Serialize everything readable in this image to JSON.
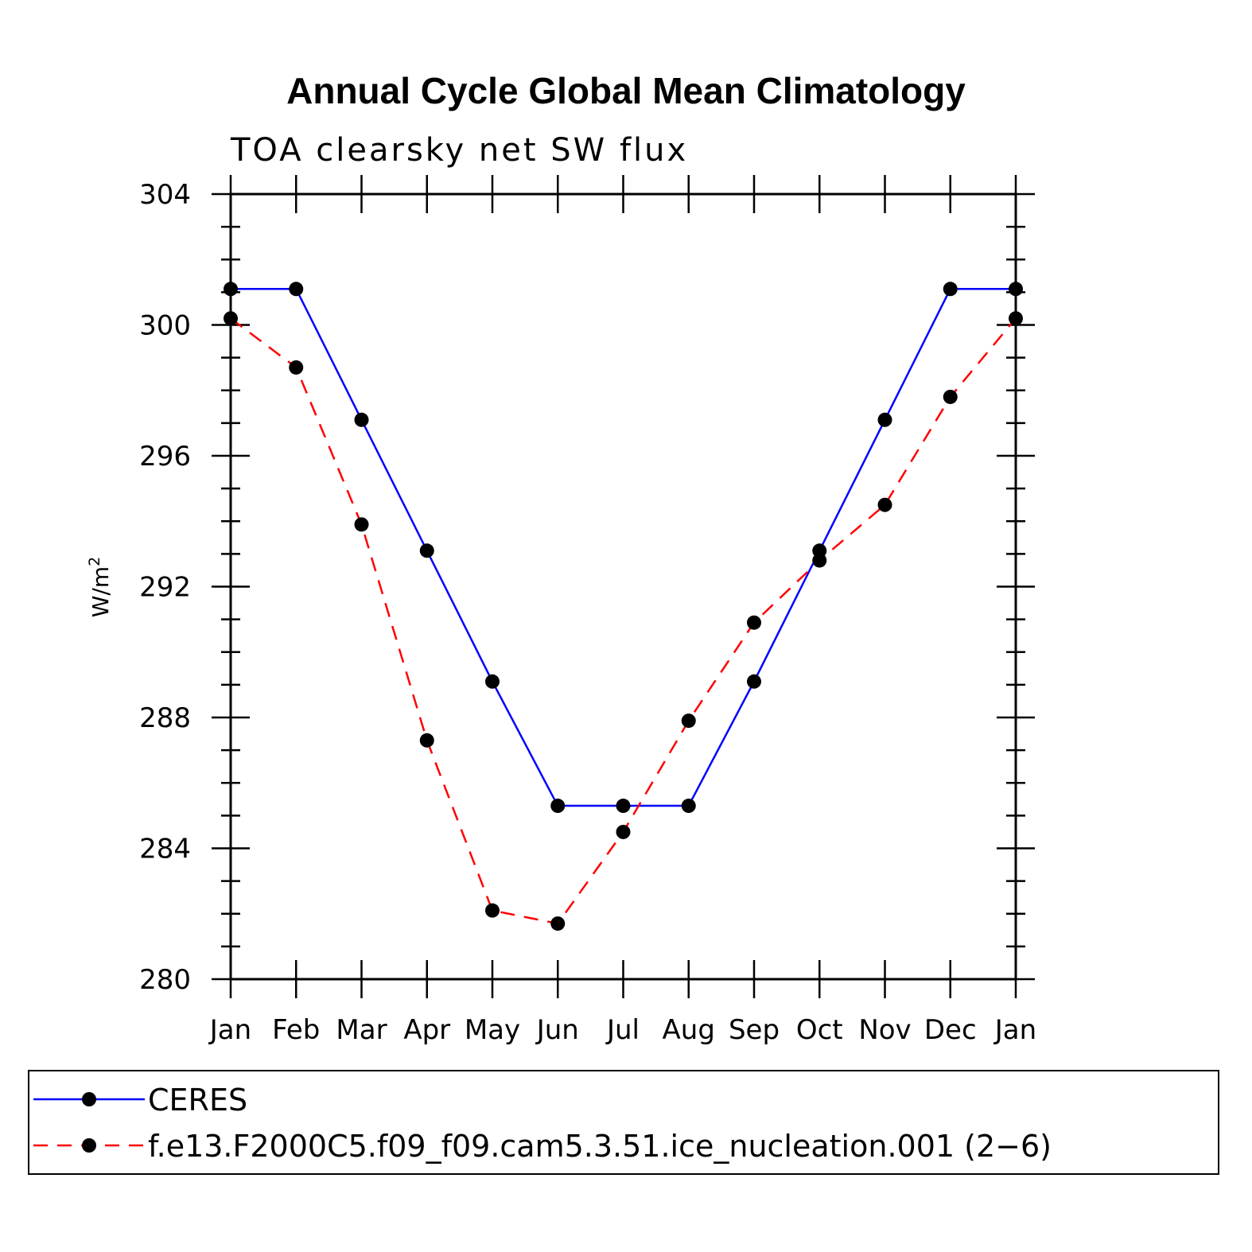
{
  "chart_data": {
    "type": "line",
    "title": "Annual Cycle Global Mean Climatology",
    "subtitle": "TOA clearsky net SW flux",
    "xlabel": "",
    "ylabel": "W/m",
    "ylabel_superscript": "2",
    "categories": [
      "Jan",
      "Feb",
      "Mar",
      "Apr",
      "May",
      "Jun",
      "Jul",
      "Aug",
      "Sep",
      "Oct",
      "Nov",
      "Dec",
      "Jan"
    ],
    "ylim": [
      280,
      304
    ],
    "yticks": [
      "280",
      "284",
      "288",
      "292",
      "296",
      "300",
      "304"
    ],
    "series": [
      {
        "name": "CERES",
        "color": "#0000ff",
        "style": "solid",
        "values": [
          301.1,
          301.1,
          297.1,
          293.1,
          289.1,
          285.3,
          285.3,
          285.3,
          289.1,
          293.1,
          297.1,
          301.1,
          301.1
        ]
      },
      {
        "name": "f.e13.F2000C5.f09_f09.cam5.3.51.ice_nucleation.001 (2−6)",
        "color": "#ff0000",
        "style": "dashed",
        "values": [
          300.2,
          298.7,
          293.9,
          287.3,
          282.1,
          281.7,
          284.5,
          287.9,
          290.9,
          292.8,
          294.5,
          297.8,
          300.2
        ]
      }
    ],
    "legend_position": "bottom"
  }
}
